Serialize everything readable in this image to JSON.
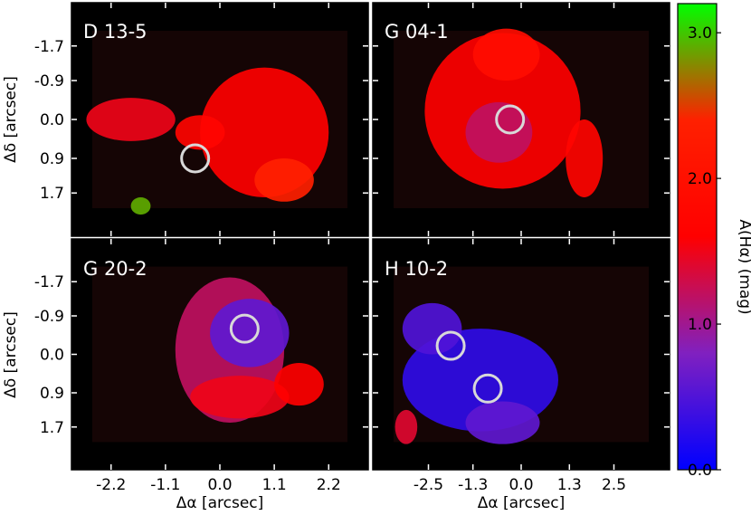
{
  "chart_data": {
    "type": "heatmap",
    "x_axis_label": "Δα [arcsec]",
    "y_axis_label": "Δδ [arcsec]",
    "y_ticks": [
      "-1.7",
      "-0.9",
      "0.0",
      "0.9",
      "1.7"
    ],
    "y_tick_values": [
      -1.7,
      -0.9,
      0.0,
      0.9,
      1.7
    ],
    "ylim": [
      -2.7,
      2.7
    ],
    "x_ticks_left": [
      "-2.2",
      "-1.1",
      "0.0",
      "1.1",
      "2.2"
    ],
    "x_tick_values_left": [
      -2.2,
      -1.1,
      0.0,
      1.1,
      2.2
    ],
    "xlim_left": [
      -3.0,
      3.0
    ],
    "x_ticks_right": [
      "-2.5",
      "-1.3",
      "0.0",
      "1.3",
      "2.5"
    ],
    "x_tick_values_right": [
      -2.5,
      -1.3,
      0.0,
      1.3,
      2.5
    ],
    "xlim_right": [
      -4.0,
      4.0
    ],
    "colorbar": {
      "label": "A(Hα) (mag)",
      "ticks": [
        "0.0",
        "1.0",
        "2.0",
        "3.0"
      ],
      "tick_values": [
        0.0,
        1.0,
        2.0,
        3.0
      ],
      "range": [
        0.0,
        3.2
      ],
      "colors": [
        "#0000ff",
        "#8020c0",
        "#ff0000",
        "#ff2000",
        "#00ff00"
      ]
    },
    "panels": [
      {
        "label": "D 13-5",
        "circles": [
          {
            "x": -0.5,
            "y": 0.9
          }
        ],
        "blobs": [
          {
            "x": 0.9,
            "y": 0.3,
            "rx": 1.3,
            "ry": 1.5,
            "value": 1.6
          },
          {
            "x": 1.3,
            "y": 1.4,
            "rx": 0.6,
            "ry": 0.5,
            "value": 2.4
          },
          {
            "x": -1.8,
            "y": 0.0,
            "rx": 0.9,
            "ry": 0.5,
            "value": 1.5
          },
          {
            "x": -0.4,
            "y": 0.3,
            "rx": 0.5,
            "ry": 0.4,
            "value": 1.7
          },
          {
            "x": -1.6,
            "y": 2.0,
            "rx": 0.2,
            "ry": 0.2,
            "value": 2.9
          }
        ]
      },
      {
        "label": "G 04-1",
        "circles": [
          {
            "x": -0.3,
            "y": 0.0
          }
        ],
        "blobs": [
          {
            "x": -0.5,
            "y": -0.2,
            "rx": 2.1,
            "ry": 1.8,
            "value": 1.6
          },
          {
            "x": -0.6,
            "y": 0.3,
            "rx": 0.9,
            "ry": 0.7,
            "value": 1.2
          },
          {
            "x": 1.7,
            "y": 0.9,
            "rx": 0.5,
            "ry": 0.9,
            "value": 1.7
          },
          {
            "x": -0.4,
            "y": -1.5,
            "rx": 0.9,
            "ry": 0.6,
            "value": 1.9
          }
        ]
      },
      {
        "label": "G 20-2",
        "circles": [
          {
            "x": 0.5,
            "y": -0.6
          }
        ],
        "blobs": [
          {
            "x": 0.2,
            "y": -0.1,
            "rx": 1.1,
            "ry": 1.7,
            "value": 1.2
          },
          {
            "x": 0.6,
            "y": -0.5,
            "rx": 0.8,
            "ry": 0.8,
            "value": 0.6
          },
          {
            "x": 0.4,
            "y": 1.0,
            "rx": 1.0,
            "ry": 0.5,
            "value": 1.5
          },
          {
            "x": 1.6,
            "y": 0.7,
            "rx": 0.5,
            "ry": 0.5,
            "value": 1.6
          }
        ]
      },
      {
        "label": "H 10-2",
        "circles": [
          {
            "x": -1.9,
            "y": -0.2
          },
          {
            "x": -0.9,
            "y": 0.8
          }
        ],
        "blobs": [
          {
            "x": -1.1,
            "y": 0.6,
            "rx": 2.1,
            "ry": 1.2,
            "value": 0.3
          },
          {
            "x": -2.4,
            "y": -0.6,
            "rx": 0.8,
            "ry": 0.6,
            "value": 0.5
          },
          {
            "x": -0.5,
            "y": 1.6,
            "rx": 1.0,
            "ry": 0.5,
            "value": 0.6
          },
          {
            "x": -3.1,
            "y": 1.7,
            "rx": 0.3,
            "ry": 0.4,
            "value": 1.4
          }
        ]
      }
    ]
  }
}
